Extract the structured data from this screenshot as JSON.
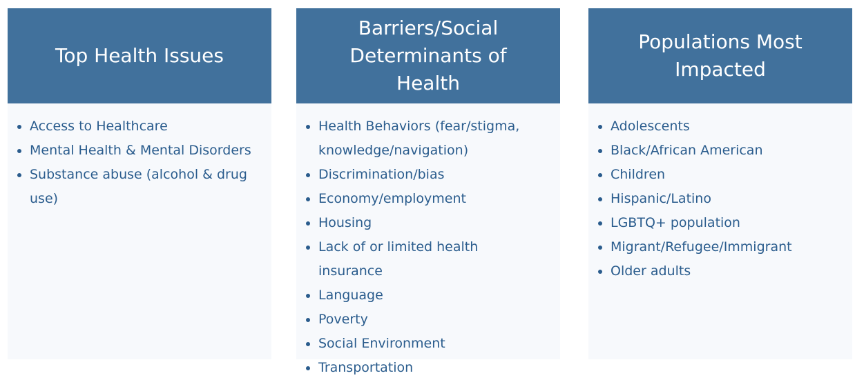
{
  "columns": [
    {
      "title": "Top Health Issues",
      "items": [
        "Access to Healthcare",
        "Mental Health & Mental Disorders",
        "Substance abuse (alcohol & drug use)"
      ]
    },
    {
      "title": "Barriers/Social Determinants of Health",
      "items": [
        "Health Behaviors (fear/stigma, knowledge/navigation)",
        "Discrimination/bias",
        "Economy/employment",
        "Housing",
        "Lack of or limited health insurance",
        "Language",
        "Poverty",
        "Social Environment",
        "Transportation"
      ]
    },
    {
      "title": "Populations Most Impacted",
      "items": [
        "Adolescents",
        "Black/African American",
        "Children",
        "Hispanic/Latino",
        "LGBTQ+ population",
        "Migrant/Refugee/Immigrant",
        "Older adults"
      ]
    }
  ]
}
